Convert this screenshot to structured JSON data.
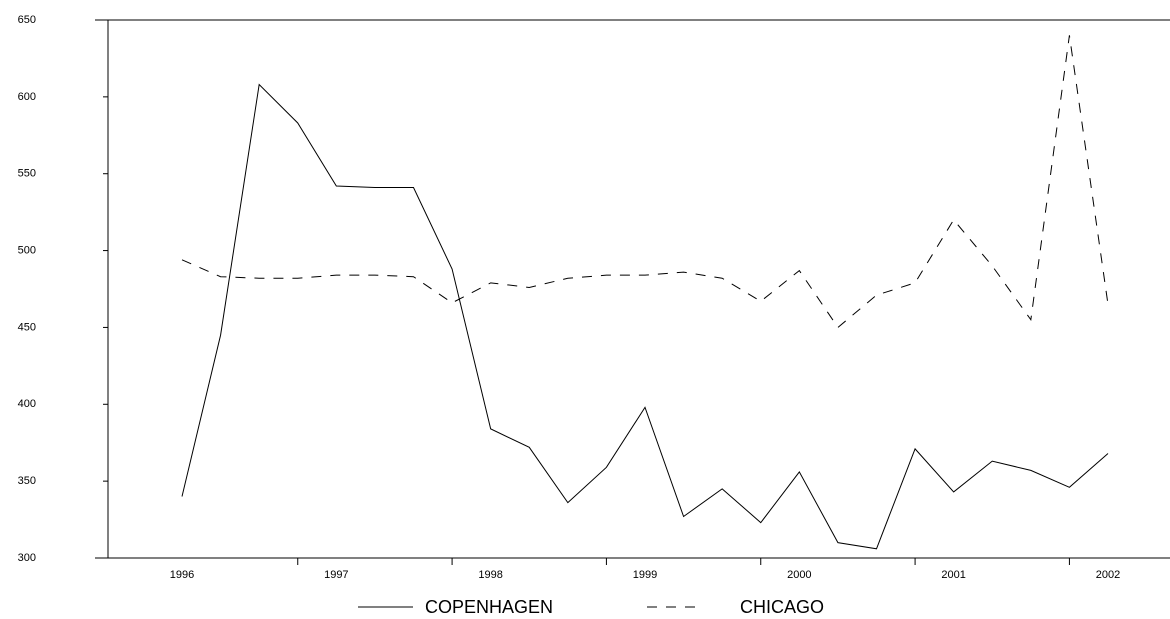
{
  "chart_data": {
    "type": "line",
    "categories": [
      "1996",
      null,
      null,
      null,
      "1997",
      null,
      null,
      null,
      "1998",
      null,
      null,
      null,
      "1999",
      null,
      null,
      null,
      "2000",
      null,
      null,
      null,
      "2001",
      null,
      null,
      null,
      "2002"
    ],
    "series": [
      {
        "name": "COPENHAGEN",
        "color": "#000000",
        "dash": "solid",
        "values": [
          340,
          445,
          608,
          583,
          542,
          541,
          541,
          488,
          384,
          372,
          336,
          359,
          398,
          327,
          345,
          323,
          356,
          310,
          306,
          371,
          343,
          363,
          357,
          346,
          368
        ]
      },
      {
        "name": "CHICAGO",
        "color": "#000000",
        "dash": "dashed",
        "values": [
          494,
          483,
          482,
          482,
          484,
          484,
          483,
          466,
          479,
          476,
          482,
          484,
          484,
          486,
          482,
          467,
          487,
          450,
          471,
          479,
          520,
          490,
          455,
          640,
          465
        ]
      }
    ],
    "ylim": [
      300,
      650
    ],
    "yticks": [
      300,
      350,
      400,
      450,
      500,
      550,
      600,
      650
    ],
    "legend": "bottom"
  }
}
